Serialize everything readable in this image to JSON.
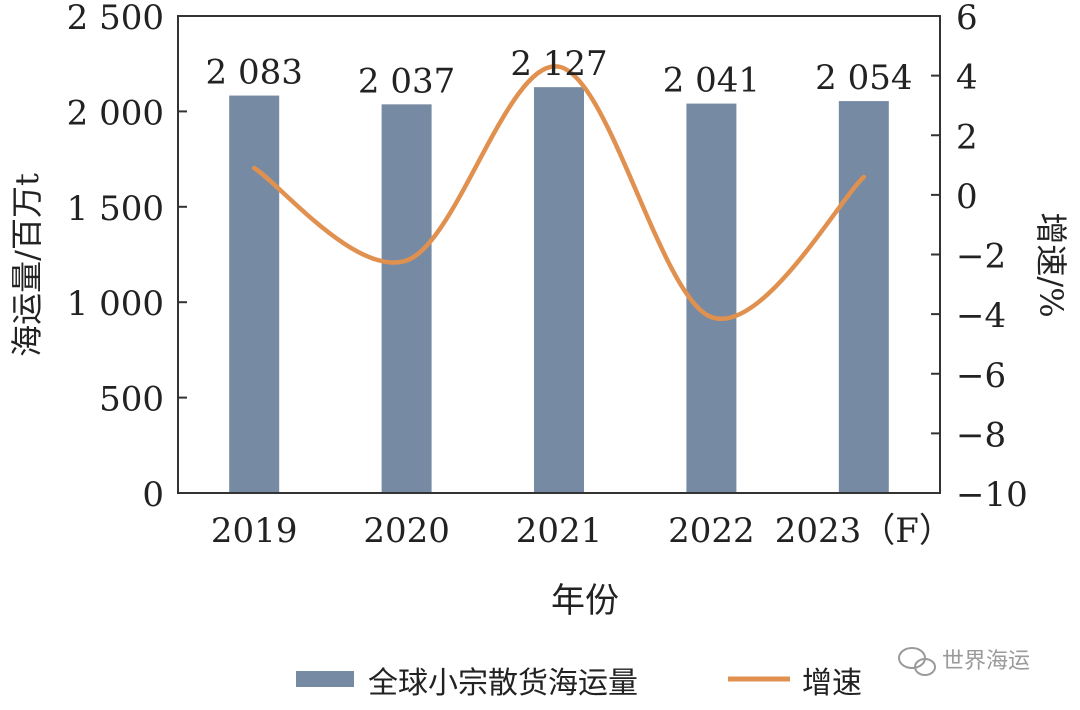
{
  "chart_data": {
    "type": "bar",
    "categories": [
      "2019",
      "2020",
      "2021",
      "2022",
      "2023（F）"
    ],
    "series": [
      {
        "name": "全球小宗散货海运量",
        "type": "bar",
        "axis": "left",
        "values": [
          2083,
          2037,
          2127,
          2041,
          2054
        ],
        "data_labels": [
          "2 083",
          "2 037",
          "2 127",
          "2 041",
          "2 054"
        ],
        "color": "#768aa3"
      },
      {
        "name": "增速",
        "type": "line",
        "axis": "right",
        "smooth": true,
        "values": [
          0.9,
          -2.2,
          4.3,
          -4.1,
          0.6
        ],
        "color": "#e1914f"
      }
    ],
    "xlabel": "年份",
    "ylabel": "海运量/百万t",
    "y2label": "增速/%",
    "ylim": [
      0,
      2500
    ],
    "y2lim": [
      -10,
      6
    ],
    "yticks": [
      0,
      500,
      1000,
      1500,
      2000,
      2500
    ],
    "ytick_labels": [
      "0",
      "500",
      "1 000",
      "1 500",
      "2 000",
      "2 500"
    ],
    "y2ticks": [
      -10,
      -8,
      -6,
      -4,
      -2,
      0,
      2,
      4,
      6
    ],
    "y2tick_labels": [
      "−10",
      "−8",
      "−6",
      "−4",
      "−2",
      "0",
      "2",
      "4",
      "6"
    ],
    "grid": false,
    "legend_position": "bottom"
  },
  "watermark": {
    "text": "世界海运",
    "icon": "wechat-icon"
  }
}
